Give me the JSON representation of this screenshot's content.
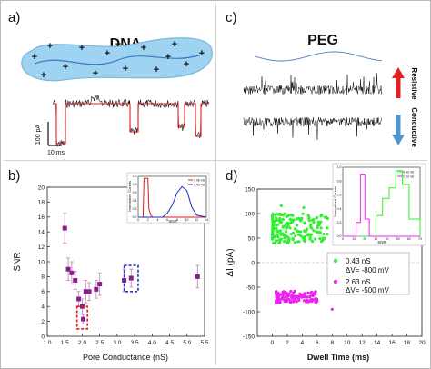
{
  "panels": {
    "a": {
      "label": "a)",
      "title": "DNA",
      "scale_y": "100 pA",
      "scale_x": "10 ms"
    },
    "b": {
      "label": "b)"
    },
    "c": {
      "label": "c)",
      "title": "PEG",
      "arrow_up_label": "Resistive",
      "arrow_down_label": "Conductive"
    },
    "d": {
      "label": "d)"
    }
  },
  "colors": {
    "dna_fill": "#9fd3f2",
    "dna_border": "#7ab8dd",
    "helix": "#3a78c6",
    "trace": "#111111",
    "fit": "#e02020",
    "arrow_up": "#e42020",
    "arrow_down": "#4f96d0",
    "snr_point": "#8b1d8b",
    "snr_error": "#c28ac2",
    "green": "#33ee33",
    "magenta": "#ee22ee",
    "box_red": "#e01a1a",
    "box_blue": "#2233cc",
    "hist_red": "#e01a1a",
    "hist_blue": "#1a2fc2"
  },
  "chart_data": [
    {
      "type": "scatter",
      "panel": "b",
      "xlabel": "Pore Conductance (nS)",
      "ylabel": "SNR",
      "xlim": [
        1.0,
        5.5
      ],
      "ylim": [
        0,
        20
      ],
      "xticks": [
        "1.0",
        "1.5",
        "2.0",
        "2.5",
        "3.0",
        "3.5",
        "4.0",
        "4.5",
        "5.0",
        "5.5"
      ],
      "yticks": [
        "0",
        "2",
        "4",
        "6",
        "8",
        "10",
        "12",
        "14",
        "16",
        "18",
        "20"
      ],
      "points": [
        {
          "x": 1.5,
          "y": 14.5,
          "err": 2.0
        },
        {
          "x": 1.6,
          "y": 9.0,
          "err": 1.5
        },
        {
          "x": 1.7,
          "y": 8.5,
          "err": 1.5
        },
        {
          "x": 1.8,
          "y": 7.5,
          "err": 1.2
        },
        {
          "x": 1.9,
          "y": 5.0,
          "err": 1.0
        },
        {
          "x": 2.0,
          "y": 4.0,
          "err": 1.0
        },
        {
          "x": 2.03,
          "y": 2.3,
          "err": 0.6
        },
        {
          "x": 2.1,
          "y": 6.0,
          "err": 1.5
        },
        {
          "x": 2.2,
          "y": 6.0,
          "err": 1.2
        },
        {
          "x": 2.4,
          "y": 6.3,
          "err": 1.2
        },
        {
          "x": 2.5,
          "y": 7.0,
          "err": 1.5
        },
        {
          "x": 3.2,
          "y": 7.5,
          "err": 1.5
        },
        {
          "x": 3.4,
          "y": 7.8,
          "err": 1.2
        },
        {
          "x": 5.3,
          "y": 8.0,
          "err": 1.5
        }
      ],
      "highlight_boxes": [
        {
          "x0": 1.85,
          "x1": 2.15,
          "y0": 1.0,
          "y1": 4.0,
          "color": "red"
        },
        {
          "x0": 3.2,
          "x1": 3.6,
          "y0": 6.0,
          "y1": 9.5,
          "color": "blue"
        }
      ]
    },
    {
      "type": "line",
      "panel": "b-inset",
      "xlabel": "SNR",
      "ylabel": "Normalized Counts",
      "xlim": [
        0,
        14
      ],
      "ylim": [
        0,
        1.0
      ],
      "xticks": [
        "0",
        "2",
        "4",
        "6",
        "8",
        "10",
        "12",
        "14"
      ],
      "yticks": [
        "0.0",
        "0.2",
        "0.4",
        "0.6",
        "0.8",
        "1.0"
      ],
      "series": [
        {
          "name": "2.06 nS",
          "color": "red",
          "x": [
            0,
            1,
            1.2,
            2,
            2.2,
            2.6,
            3,
            14
          ],
          "y": [
            0,
            0,
            0.95,
            0.95,
            0.2,
            0.05,
            0,
            0
          ]
        },
        {
          "name": "3.45 nS",
          "color": "blue",
          "x": [
            0,
            5,
            6,
            7,
            8,
            9,
            10,
            11,
            12,
            14
          ],
          "y": [
            0,
            0,
            0.1,
            0.3,
            0.6,
            0.75,
            0.65,
            0.25,
            0.05,
            0
          ]
        }
      ]
    },
    {
      "type": "scatter",
      "panel": "d",
      "xlabel": "Dwell Time (ms)",
      "ylabel": "ΔI (pA)",
      "xlim": [
        -2,
        20
      ],
      "ylim": [
        -150,
        150
      ],
      "xticks": [
        "0",
        "2",
        "4",
        "6",
        "8",
        "10",
        "12",
        "14",
        "16",
        "18",
        "20"
      ],
      "yticks": [
        "-150",
        "-100",
        "-50",
        "0",
        "50",
        "100",
        "150"
      ],
      "series": [
        {
          "name": "0.43 nS",
          "label": "0.43 nS",
          "bias_label": "ΔV= -800 mV",
          "color": "green",
          "y_range": [
            40,
            100
          ],
          "x_range": [
            0,
            7.5
          ]
        },
        {
          "name": "2.63 nS",
          "label": "2.63 nS",
          "bias_label": "ΔV= -500 mV",
          "color": "magenta",
          "y_range": [
            -82,
            -58
          ],
          "x_range": [
            0.5,
            6
          ]
        }
      ],
      "outliers": [
        {
          "x": 8.8,
          "y": 132
        },
        {
          "x": 1.2,
          "y": 116
        },
        {
          "x": 4.2,
          "y": 112
        },
        {
          "x": 6.5,
          "y": 95
        },
        {
          "x": 8.0,
          "y": -95
        }
      ]
    },
    {
      "type": "line",
      "panel": "d-inset",
      "xlabel": "SNR",
      "ylabel": "Normalized Counts",
      "xlim": [
        0,
        70
      ],
      "ylim": [
        0,
        1.0
      ],
      "xticks": [
        "0",
        "10",
        "20",
        "30",
        "40",
        "50",
        "60",
        "70"
      ],
      "yticks": [
        "0.0",
        "0.2",
        "0.4",
        "0.6",
        "0.8",
        "1.0"
      ],
      "series": [
        {
          "name": "0.43 nS",
          "color": "green",
          "x": [
            0,
            24,
            30,
            36,
            42,
            48,
            54,
            60,
            70
          ],
          "y": [
            0,
            0,
            0.3,
            0.55,
            0.7,
            0.95,
            0.75,
            0.25,
            0
          ]
        },
        {
          "name": "2.63 nS",
          "color": "magenta",
          "x": [
            0,
            8,
            12,
            16,
            20,
            24,
            70
          ],
          "y": [
            0,
            0,
            0.2,
            0.9,
            0.25,
            0,
            0
          ]
        }
      ]
    }
  ]
}
